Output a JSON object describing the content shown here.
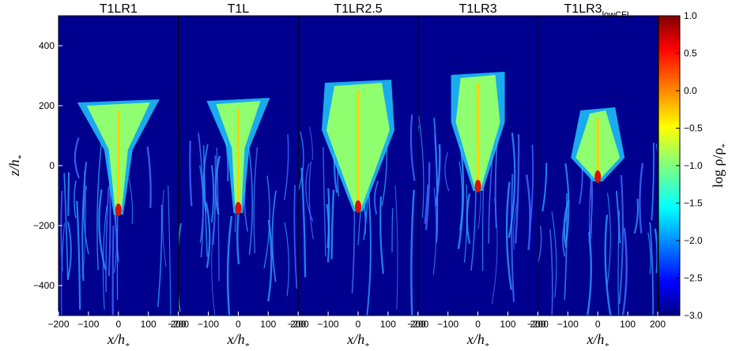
{
  "chart_data": [
    {
      "type": "image",
      "title": "T1LR1",
      "xlim": [
        -200,
        200
      ],
      "xticks": [
        {
          "value": -200,
          "label": "−200"
        },
        {
          "value": -100,
          "label": "−100"
        },
        0,
        100,
        200
      ],
      "xlabel": "x/h",
      "xlabel_sub": "*",
      "ylim": [
        -500,
        500
      ],
      "yticks": [
        {
          "value": -400,
          "label": "−400"
        },
        {
          "value": -200,
          "label": "−200"
        },
        0,
        200,
        400
      ],
      "ylabel": "z/h",
      "ylabel_sub": "*"
    },
    {
      "type": "image",
      "title": "T1L",
      "xlim": [
        -200,
        200
      ],
      "xticks": [
        {
          "value": -200,
          "label": "−200"
        },
        {
          "value": -100,
          "label": "−100"
        },
        0,
        100,
        200
      ],
      "xlabel": "x/h",
      "xlabel_sub": "*",
      "ylim": [
        -500,
        500
      ]
    },
    {
      "type": "image",
      "title": "T1LR2.5",
      "xlim": [
        -200,
        200
      ],
      "xticks": [
        {
          "value": -200,
          "label": "−200"
        },
        {
          "value": -100,
          "label": "−100"
        },
        0,
        100,
        200
      ],
      "xlabel": "x/h",
      "xlabel_sub": "*",
      "ylim": [
        -500,
        500
      ]
    },
    {
      "type": "image",
      "title": "T1LR3",
      "xlim": [
        -200,
        200
      ],
      "xticks": [
        {
          "value": -200,
          "label": "−200"
        },
        {
          "value": -100,
          "label": "−100"
        },
        0,
        100,
        200
      ],
      "xlabel": "x/h",
      "xlabel_sub": "*",
      "ylim": [
        -500,
        500
      ]
    },
    {
      "type": "image",
      "title": "T1LR3",
      "title_sub": "lowCFL",
      "xlim": [
        -200,
        200
      ],
      "xticks": [
        {
          "value": -200,
          "label": "−200"
        },
        {
          "value": -100,
          "label": "−100"
        },
        0,
        100,
        200
      ],
      "xlabel": "x/h",
      "xlabel_sub": "*",
      "ylim": [
        -500,
        500
      ]
    }
  ],
  "colorbar": {
    "label": "log ρ/ρ",
    "label_sub": "*",
    "lim": [
      -3,
      1
    ],
    "ticks": [
      {
        "value": -3,
        "label": "−3.0"
      },
      {
        "value": -2.5,
        "label": "−2.5"
      },
      {
        "value": -2,
        "label": "−2.0"
      },
      {
        "value": -1.5,
        "label": "−1.5"
      },
      {
        "value": -1,
        "label": "−1.0"
      },
      {
        "value": -0.5,
        "label": "−0.5"
      },
      {
        "value": 0,
        "label": "0.0"
      },
      {
        "value": 0.5,
        "label": "0.5"
      },
      {
        "value": 1,
        "label": "1.0"
      }
    ]
  }
}
